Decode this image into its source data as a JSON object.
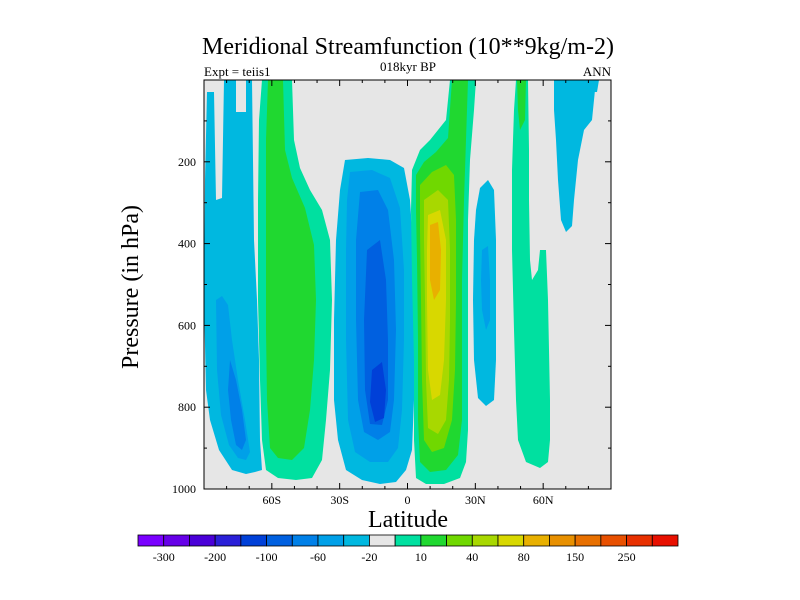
{
  "chart_data": {
    "type": "heatmap",
    "subtype": "filled-contour",
    "title": "Meridional Streamfunction (10**9kg/m-2)",
    "subtitle": "018kyr BP",
    "left_label": "Expt = teiis1",
    "right_label": "ANN",
    "xlabel": "Latitude",
    "ylabel": "Pressure (in hPa)",
    "xlim": [
      -90,
      90
    ],
    "ylim": [
      1000,
      0
    ],
    "x_ticks": [
      {
        "value": -60,
        "label": "60S"
      },
      {
        "value": -30,
        "label": "30S"
      },
      {
        "value": 0,
        "label": "0"
      },
      {
        "value": 30,
        "label": "30N"
      },
      {
        "value": 60,
        "label": "60N"
      }
    ],
    "y_ticks": [
      {
        "value": 200,
        "label": "200"
      },
      {
        "value": 400,
        "label": "400"
      },
      {
        "value": 600,
        "label": "600"
      },
      {
        "value": 800,
        "label": "800"
      },
      {
        "value": 1000,
        "label": "1000"
      }
    ],
    "background_color": "#e6e6e6",
    "colorbar": {
      "boxes": [
        "#7a00ff",
        "#6600e8",
        "#4a00d8",
        "#2a20d8",
        "#0040d8",
        "#0060e0",
        "#0080e8",
        "#00a0e8",
        "#00b8e0",
        "#e6e6e6",
        "#00e0a0",
        "#20d830",
        "#70d800",
        "#a8d800",
        "#d8d800",
        "#e8b000",
        "#e89000",
        "#e87000",
        "#e85000",
        "#e83000",
        "#e81000"
      ],
      "labels": [
        {
          "after_box": 1,
          "text": "-300"
        },
        {
          "after_box": 3,
          "text": "-200"
        },
        {
          "after_box": 5,
          "text": "-100"
        },
        {
          "after_box": 7,
          "text": "-60"
        },
        {
          "after_box": 9,
          "text": "-20"
        },
        {
          "after_box": 11,
          "text": "10"
        },
        {
          "after_box": 13,
          "text": "40"
        },
        {
          "after_box": 15,
          "text": "80"
        },
        {
          "after_box": 17,
          "text": "150"
        },
        {
          "after_box": 19,
          "text": "250"
        }
      ]
    },
    "features": [
      {
        "name": "antarctic-negative-cell",
        "lat_range": [
          -87,
          -52
        ],
        "p_range": [
          30,
          975
        ],
        "min_value": -60
      },
      {
        "name": "southern-positive-cell",
        "lat_range": [
          -64,
          -38
        ],
        "p_range": [
          0,
          985
        ],
        "max_value": 40
      },
      {
        "name": "southern-hadley-negative-cell",
        "lat_range": [
          -30,
          2
        ],
        "p_range": [
          160,
          990
        ],
        "min_value": -100
      },
      {
        "name": "northern-hadley-positive-cell",
        "lat_range": [
          3,
          28
        ],
        "p_range": [
          0,
          975
        ],
        "max_value": 80
      },
      {
        "name": "northern-negative-cell",
        "lat_range": [
          30,
          38
        ],
        "p_range": [
          240,
          780
        ],
        "min_value": -20
      },
      {
        "name": "northern-midlatitude-positive-cell",
        "lat_range": [
          48,
          62
        ],
        "p_range": [
          0,
          950
        ],
        "max_value": 10
      },
      {
        "name": "polar-negative-cell",
        "lat_range": [
          62,
          82
        ],
        "p_range": [
          0,
          330
        ],
        "min_value": -20
      }
    ]
  }
}
